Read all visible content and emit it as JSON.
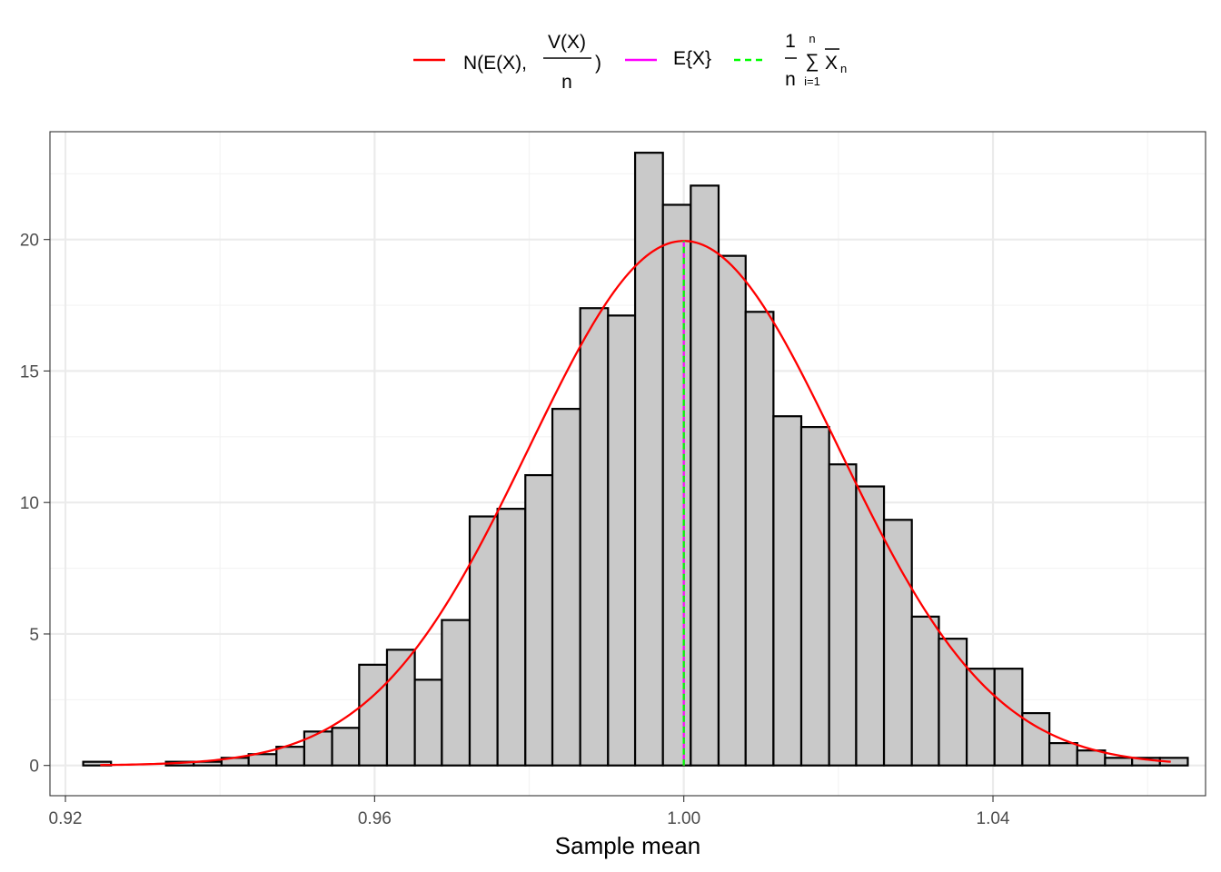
{
  "chart_data": {
    "type": "bar",
    "subtype": "histogram",
    "xlabel": "Sample mean",
    "ylabel": "",
    "xlim": [
      0.918,
      1.0675
    ],
    "ylim": [
      -1.15,
      24.1
    ],
    "x_ticks": [
      0.92,
      0.96,
      1.0,
      1.04
    ],
    "x_tick_labels": [
      "0.92",
      "0.96",
      "1.00",
      "1.04"
    ],
    "y_ticks": [
      0,
      5,
      10,
      15,
      20
    ],
    "y_tick_labels": [
      "0",
      "5",
      "10",
      "15",
      "20"
    ],
    "grid": true,
    "legend_position": "top",
    "bin_width": 0.003571,
    "bins": [
      {
        "x0": 0.9223,
        "x1": 0.9259,
        "value": 0.14
      },
      {
        "x0": 0.9259,
        "x1": 0.9294,
        "value": 0.0
      },
      {
        "x0": 0.9294,
        "x1": 0.933,
        "value": 0.0
      },
      {
        "x0": 0.933,
        "x1": 0.9366,
        "value": 0.14
      },
      {
        "x0": 0.9366,
        "x1": 0.9402,
        "value": 0.14
      },
      {
        "x0": 0.9402,
        "x1": 0.9437,
        "value": 0.29
      },
      {
        "x0": 0.9437,
        "x1": 0.9473,
        "value": 0.43
      },
      {
        "x0": 0.9473,
        "x1": 0.9509,
        "value": 0.71
      },
      {
        "x0": 0.9509,
        "x1": 0.9545,
        "value": 1.29
      },
      {
        "x0": 0.9545,
        "x1": 0.958,
        "value": 1.43
      },
      {
        "x0": 0.958,
        "x1": 0.9616,
        "value": 3.83
      },
      {
        "x0": 0.9616,
        "x1": 0.9652,
        "value": 4.4
      },
      {
        "x0": 0.9652,
        "x1": 0.9687,
        "value": 3.26
      },
      {
        "x0": 0.9687,
        "x1": 0.9723,
        "value": 5.53
      },
      {
        "x0": 0.9723,
        "x1": 0.9759,
        "value": 9.47
      },
      {
        "x0": 0.9759,
        "x1": 0.9795,
        "value": 9.76
      },
      {
        "x0": 0.9795,
        "x1": 0.983,
        "value": 11.04
      },
      {
        "x0": 0.983,
        "x1": 0.9866,
        "value": 13.56
      },
      {
        "x0": 0.9866,
        "x1": 0.9902,
        "value": 17.39
      },
      {
        "x0": 0.9902,
        "x1": 0.9937,
        "value": 17.11
      },
      {
        "x0": 0.9937,
        "x1": 0.9973,
        "value": 23.3
      },
      {
        "x0": 0.9973,
        "x1": 1.0009,
        "value": 21.32
      },
      {
        "x0": 1.0009,
        "x1": 1.0045,
        "value": 22.05
      },
      {
        "x0": 1.0045,
        "x1": 1.008,
        "value": 19.38
      },
      {
        "x0": 1.008,
        "x1": 1.0116,
        "value": 17.25
      },
      {
        "x0": 1.0116,
        "x1": 1.0152,
        "value": 13.28
      },
      {
        "x0": 1.0152,
        "x1": 1.0188,
        "value": 12.87
      },
      {
        "x0": 1.0188,
        "x1": 1.0223,
        "value": 11.45
      },
      {
        "x0": 1.0223,
        "x1": 1.0259,
        "value": 10.61
      },
      {
        "x0": 1.0259,
        "x1": 1.0295,
        "value": 9.34
      },
      {
        "x0": 1.0295,
        "x1": 1.033,
        "value": 5.66
      },
      {
        "x0": 1.033,
        "x1": 1.0366,
        "value": 4.82
      },
      {
        "x0": 1.0366,
        "x1": 1.0402,
        "value": 3.68
      },
      {
        "x0": 1.0402,
        "x1": 1.0438,
        "value": 3.68
      },
      {
        "x0": 1.0438,
        "x1": 1.0473,
        "value": 1.99
      },
      {
        "x0": 1.0473,
        "x1": 1.0509,
        "value": 0.85
      },
      {
        "x0": 1.0509,
        "x1": 1.0545,
        "value": 0.57
      },
      {
        "x0": 1.0545,
        "x1": 1.058,
        "value": 0.29
      },
      {
        "x0": 1.058,
        "x1": 1.0616,
        "value": 0.29
      },
      {
        "x0": 1.0616,
        "x1": 1.0652,
        "value": 0.29
      }
    ],
    "series": [
      {
        "legend": "N(E(X), V(X)/n)",
        "type": "density_curve",
        "color": "#ff0000",
        "mean": 1.0,
        "sd": 0.02,
        "x_range": [
          0.9245,
          1.063
        ]
      },
      {
        "legend": "E{X}",
        "type": "vline",
        "color": "#ff00ff",
        "x": 1.0
      },
      {
        "legend": "(1/n) Σ X̄n",
        "type": "vline",
        "color": "#00ff00",
        "linestyle": "dashed",
        "x": 1.0
      }
    ],
    "legend": {
      "entry1": {
        "prefix": "N(E(X),",
        "numerator": "V(X)",
        "denominator": "n",
        "suffix": ")"
      },
      "entry2": {
        "label": "E{X}"
      },
      "entry3": {
        "fraction_num": "1",
        "fraction_den": "n",
        "sum_symbol": "∑",
        "sum_upper": "n",
        "sum_lower": "i=1",
        "term": "X",
        "term_sub": "n"
      }
    },
    "colors": {
      "bar_fill": "#c9c9c9",
      "bar_stroke": "#000000",
      "grid_major": "#ebebeb",
      "grid_minor": "#f3f3f3",
      "panel_border": "#333333",
      "curve": "#ff0000",
      "mean_line": "#ff00ff",
      "avg_line": "#00ff00"
    }
  }
}
